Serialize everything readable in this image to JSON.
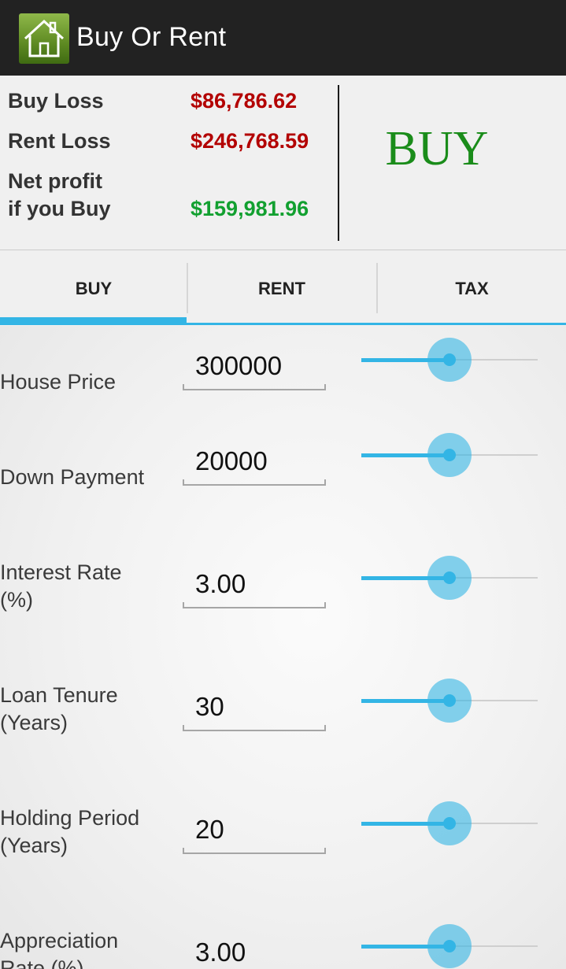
{
  "app": {
    "title": "Buy Or Rent",
    "icon": "house-icon"
  },
  "summary": {
    "buy_loss_label": "Buy Loss",
    "buy_loss_value": "$86,786.62",
    "rent_loss_label": "Rent Loss",
    "rent_loss_value": "$246,768.59",
    "net_profit_label_line1": "Net profit",
    "net_profit_label_line2": "if you Buy",
    "net_profit_value": "$159,981.96",
    "verdict": "BUY",
    "loss_color": "#b30000",
    "profit_color": "#12a030",
    "verdict_color": "#1a8c1a"
  },
  "tabs": [
    {
      "label": "BUY",
      "selected": true
    },
    {
      "label": "RENT",
      "selected": false
    },
    {
      "label": "TAX",
      "selected": false
    }
  ],
  "accent_color": "#33b5e5",
  "fields": [
    {
      "label_line1": "House Price",
      "label_line2": "",
      "value": "300000",
      "slider_level": 0.5
    },
    {
      "label_line1": "Down Payment",
      "label_line2": "",
      "value": "20000",
      "slider_level": 0.5
    },
    {
      "label_line1": "Interest Rate",
      "label_line2": "(%)",
      "value": "3.00",
      "slider_level": 0.5
    },
    {
      "label_line1": "Loan Tenure",
      "label_line2": "(Years)",
      "value": "30",
      "slider_level": 0.5
    },
    {
      "label_line1": "Holding Period",
      "label_line2": "(Years)",
      "value": "20",
      "slider_level": 0.5
    },
    {
      "label_line1": "Appreciation",
      "label_line2": "Rate (%)",
      "value": "3.00",
      "slider_level": 0.5
    }
  ]
}
